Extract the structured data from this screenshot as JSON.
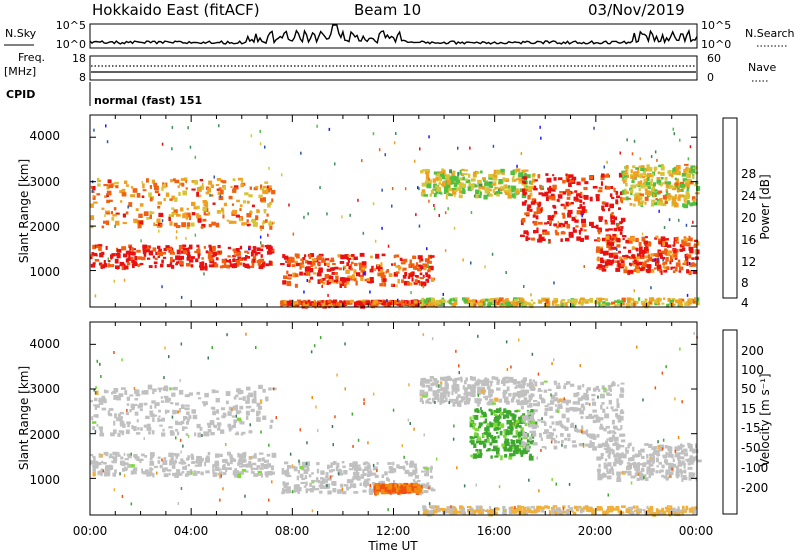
{
  "header": {
    "station": "Hokkaido East (fitACF)",
    "beam": "Beam 10",
    "date": "03/Nov/2019"
  },
  "noise_panel": {
    "left_label": "N.Sky",
    "right_label": "N.Search",
    "ticks_left": [
      "10^5",
      "10^0"
    ],
    "ticks_right": [
      "10^5",
      "10^0"
    ]
  },
  "freq_panel": {
    "label_line1": "Freq.",
    "label_line2": "[MHz]",
    "ticks_left": [
      "18",
      "8"
    ],
    "right_label": "Nave",
    "ticks_right": [
      "60",
      "0"
    ]
  },
  "cpid": {
    "label": "CPID",
    "text": "normal (fast) 151"
  },
  "power_panel": {
    "ylabel": "Slant Range [km]",
    "colorbar_title": "Power [dB]",
    "colorbar_ticks": [
      "28",
      "24",
      "20",
      "16",
      "12",
      "8",
      "4"
    ]
  },
  "velocity_panel": {
    "ylabel": "Slant Range [km]",
    "colorbar_title": "Velocity [m s⁻¹]",
    "colorbar_ticks": [
      "200",
      "100",
      "50",
      "15",
      "-15",
      "-50",
      "-100",
      "-200"
    ]
  },
  "x_axis": {
    "label": "Time UT",
    "ticks": [
      "00:00",
      "04:00",
      "08:00",
      "12:00",
      "16:00",
      "20:00",
      "00:00"
    ]
  },
  "colors": {
    "power_scale": [
      "#1a1aff",
      "#2e55a8",
      "#3f8f5a",
      "#4fbf3f",
      "#d8c43a",
      "#f0a020",
      "#f06010",
      "#e81010"
    ],
    "velocity_scale": [
      "#2233bb",
      "#3a7a55",
      "#3ea82e",
      "#7fd93a",
      "#c0c0c0",
      "#f0b03a",
      "#f08a10",
      "#f05010",
      "#e81010"
    ],
    "ground_scatter": "#c0c0c0"
  },
  "chart_data": [
    {
      "type": "heatmap",
      "title": "Power [dB]",
      "xlabel": "Time UT",
      "ylabel": "Slant Range [km]",
      "xlim": [
        0,
        24
      ],
      "ylim": [
        180,
        4500
      ],
      "clim": [
        0,
        30
      ],
      "yticks": [
        1000,
        2000,
        3000,
        4000
      ],
      "regions": [
        {
          "t": [
            0,
            7.2
          ],
          "r": [
            1100,
            1600
          ],
          "value": 28
        },
        {
          "t": [
            0,
            7.2
          ],
          "r": [
            2000,
            3100
          ],
          "value": 22
        },
        {
          "t": [
            7.5,
            13.5
          ],
          "r": [
            700,
            1400
          ],
          "value": 26
        },
        {
          "t": [
            7.5,
            13.5
          ],
          "r": [
            250,
            350
          ],
          "value": 26
        },
        {
          "t": [
            13.0,
            24
          ],
          "r": [
            250,
            400
          ],
          "value": 18
        },
        {
          "t": [
            13.0,
            17.5
          ],
          "r": [
            2700,
            3300
          ],
          "value": 16
        },
        {
          "t": [
            17.0,
            21.0
          ],
          "r": [
            1700,
            3200
          ],
          "value": 28
        },
        {
          "t": [
            20.0,
            24
          ],
          "r": [
            1000,
            1800
          ],
          "value": 26
        },
        {
          "t": [
            21.0,
            24
          ],
          "r": [
            2500,
            3400
          ],
          "value": 18
        }
      ]
    },
    {
      "type": "heatmap",
      "title": "Velocity [m s⁻¹]",
      "xlabel": "Time UT",
      "ylabel": "Slant Range [km]",
      "xlim": [
        0,
        24
      ],
      "ylim": [
        180,
        4500
      ],
      "clim": [
        -250,
        250
      ],
      "yticks": [
        1000,
        2000,
        3000,
        4000
      ],
      "regions": [
        {
          "t": [
            0,
            7.2
          ],
          "r": [
            1100,
            1600
          ],
          "value": 0
        },
        {
          "t": [
            0,
            7.2
          ],
          "r": [
            2000,
            3100
          ],
          "value": 0
        },
        {
          "t": [
            7.5,
            13.5
          ],
          "r": [
            700,
            1400
          ],
          "value": 0
        },
        {
          "t": [
            11.2,
            13.0
          ],
          "r": [
            730,
            900
          ],
          "value": -100
        },
        {
          "t": [
            13.0,
            24
          ],
          "r": [
            250,
            400
          ],
          "value": -20
        },
        {
          "t": [
            13.0,
            17.5
          ],
          "r": [
            2700,
            3300
          ],
          "value": 0
        },
        {
          "t": [
            15.0,
            17.5
          ],
          "r": [
            1500,
            2600
          ],
          "value": 60
        },
        {
          "t": [
            17.0,
            21.0
          ],
          "r": [
            1700,
            3200
          ],
          "value": 0
        },
        {
          "t": [
            20.0,
            24
          ],
          "r": [
            1000,
            1800
          ],
          "value": 0
        }
      ]
    }
  ]
}
